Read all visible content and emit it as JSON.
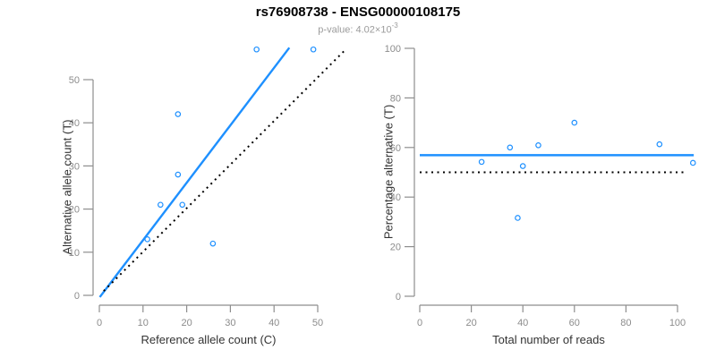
{
  "header": {
    "title": "rs76908738 - ENSG00000108175",
    "pvalue_prefix": "p-value: 4.02×10",
    "pvalue_exponent": "-3"
  },
  "colors": {
    "accent_blue": "#1E90FF",
    "axis_gray": "#8E8E8E",
    "tick_label_gray": "#8C8C8C",
    "axis_title_dark": "#333333",
    "subtitle_gray": "#9B9B9B",
    "dotted_line_black": "#000000",
    "background": "#FFFFFF"
  },
  "chart_data": [
    {
      "type": "scatter",
      "name": "allele-count-scatter",
      "xlabel": "Reference allele count (C)",
      "ylabel": "Alternative allele count (T)",
      "xticks": [
        0,
        10,
        20,
        30,
        40,
        50
      ],
      "yticks": [
        0,
        10,
        20,
        30,
        40,
        50
      ],
      "xlim": [
        -2,
        57
      ],
      "ylim": [
        -2,
        58
      ],
      "grid": false,
      "legend": null,
      "marker": "open-circle",
      "points": [
        [
          11,
          13
        ],
        [
          14,
          21
        ],
        [
          18,
          28
        ],
        [
          18,
          42
        ],
        [
          19,
          21
        ],
        [
          26,
          12
        ],
        [
          36,
          57
        ],
        [
          49,
          57
        ]
      ],
      "lines": [
        {
          "name": "regression-line",
          "style": "solid",
          "color": "#1E90FF",
          "x1": 0.1,
          "y1": -0.4,
          "x2": 43.5,
          "y2": 57.4
        },
        {
          "name": "identity-line",
          "style": "dotted",
          "color": "#000000",
          "x1": 1.0,
          "y1": 1.0,
          "x2": 56.3,
          "y2": 56.9
        }
      ]
    },
    {
      "type": "scatter",
      "name": "percentage-vs-reads-scatter",
      "xlabel": "Total number of reads",
      "ylabel": "Percentage alternative (T)",
      "xticks": [
        0,
        20,
        40,
        60,
        80,
        100
      ],
      "yticks": [
        0,
        20,
        40,
        60,
        80,
        100
      ],
      "xlim": [
        -4,
        110
      ],
      "ylim": [
        -4,
        104
      ],
      "grid": false,
      "legend": null,
      "marker": "open-circle",
      "points": [
        [
          24,
          54.2
        ],
        [
          35,
          60
        ],
        [
          38,
          31.6
        ],
        [
          40,
          52.5
        ],
        [
          46,
          60.9
        ],
        [
          60,
          70
        ],
        [
          93,
          61.3
        ],
        [
          106,
          53.8
        ]
      ],
      "lines": [
        {
          "name": "mean-percentage-line",
          "style": "solid",
          "color": "#1E90FF",
          "x1": 0,
          "y1": 56.9,
          "x2": 106.3,
          "y2": 56.9
        },
        {
          "name": "fifty-percent-line",
          "style": "dotted",
          "color": "#000000",
          "x1": 0,
          "y1": 50,
          "x2": 103.7,
          "y2": 50
        }
      ]
    }
  ]
}
